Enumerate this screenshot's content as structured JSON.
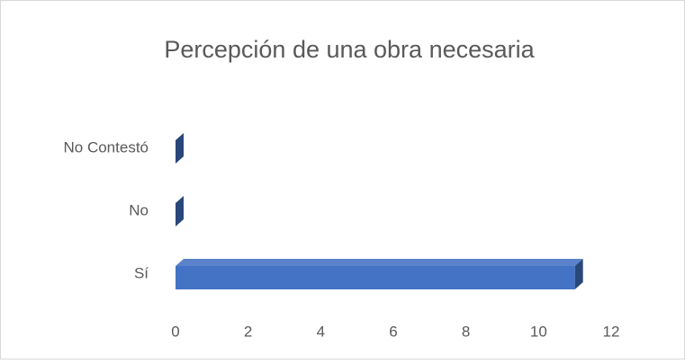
{
  "chart_data": {
    "type": "bar",
    "orientation": "horizontal",
    "title": "Percepción de una obra necesaria",
    "categories": [
      "Sí",
      "No",
      "No Contestó"
    ],
    "values": [
      11,
      0,
      0
    ],
    "color": "#4472c4",
    "xlim": [
      0,
      12
    ],
    "xticks": [
      0,
      2,
      4,
      6,
      8,
      10,
      12
    ],
    "grid": false
  }
}
